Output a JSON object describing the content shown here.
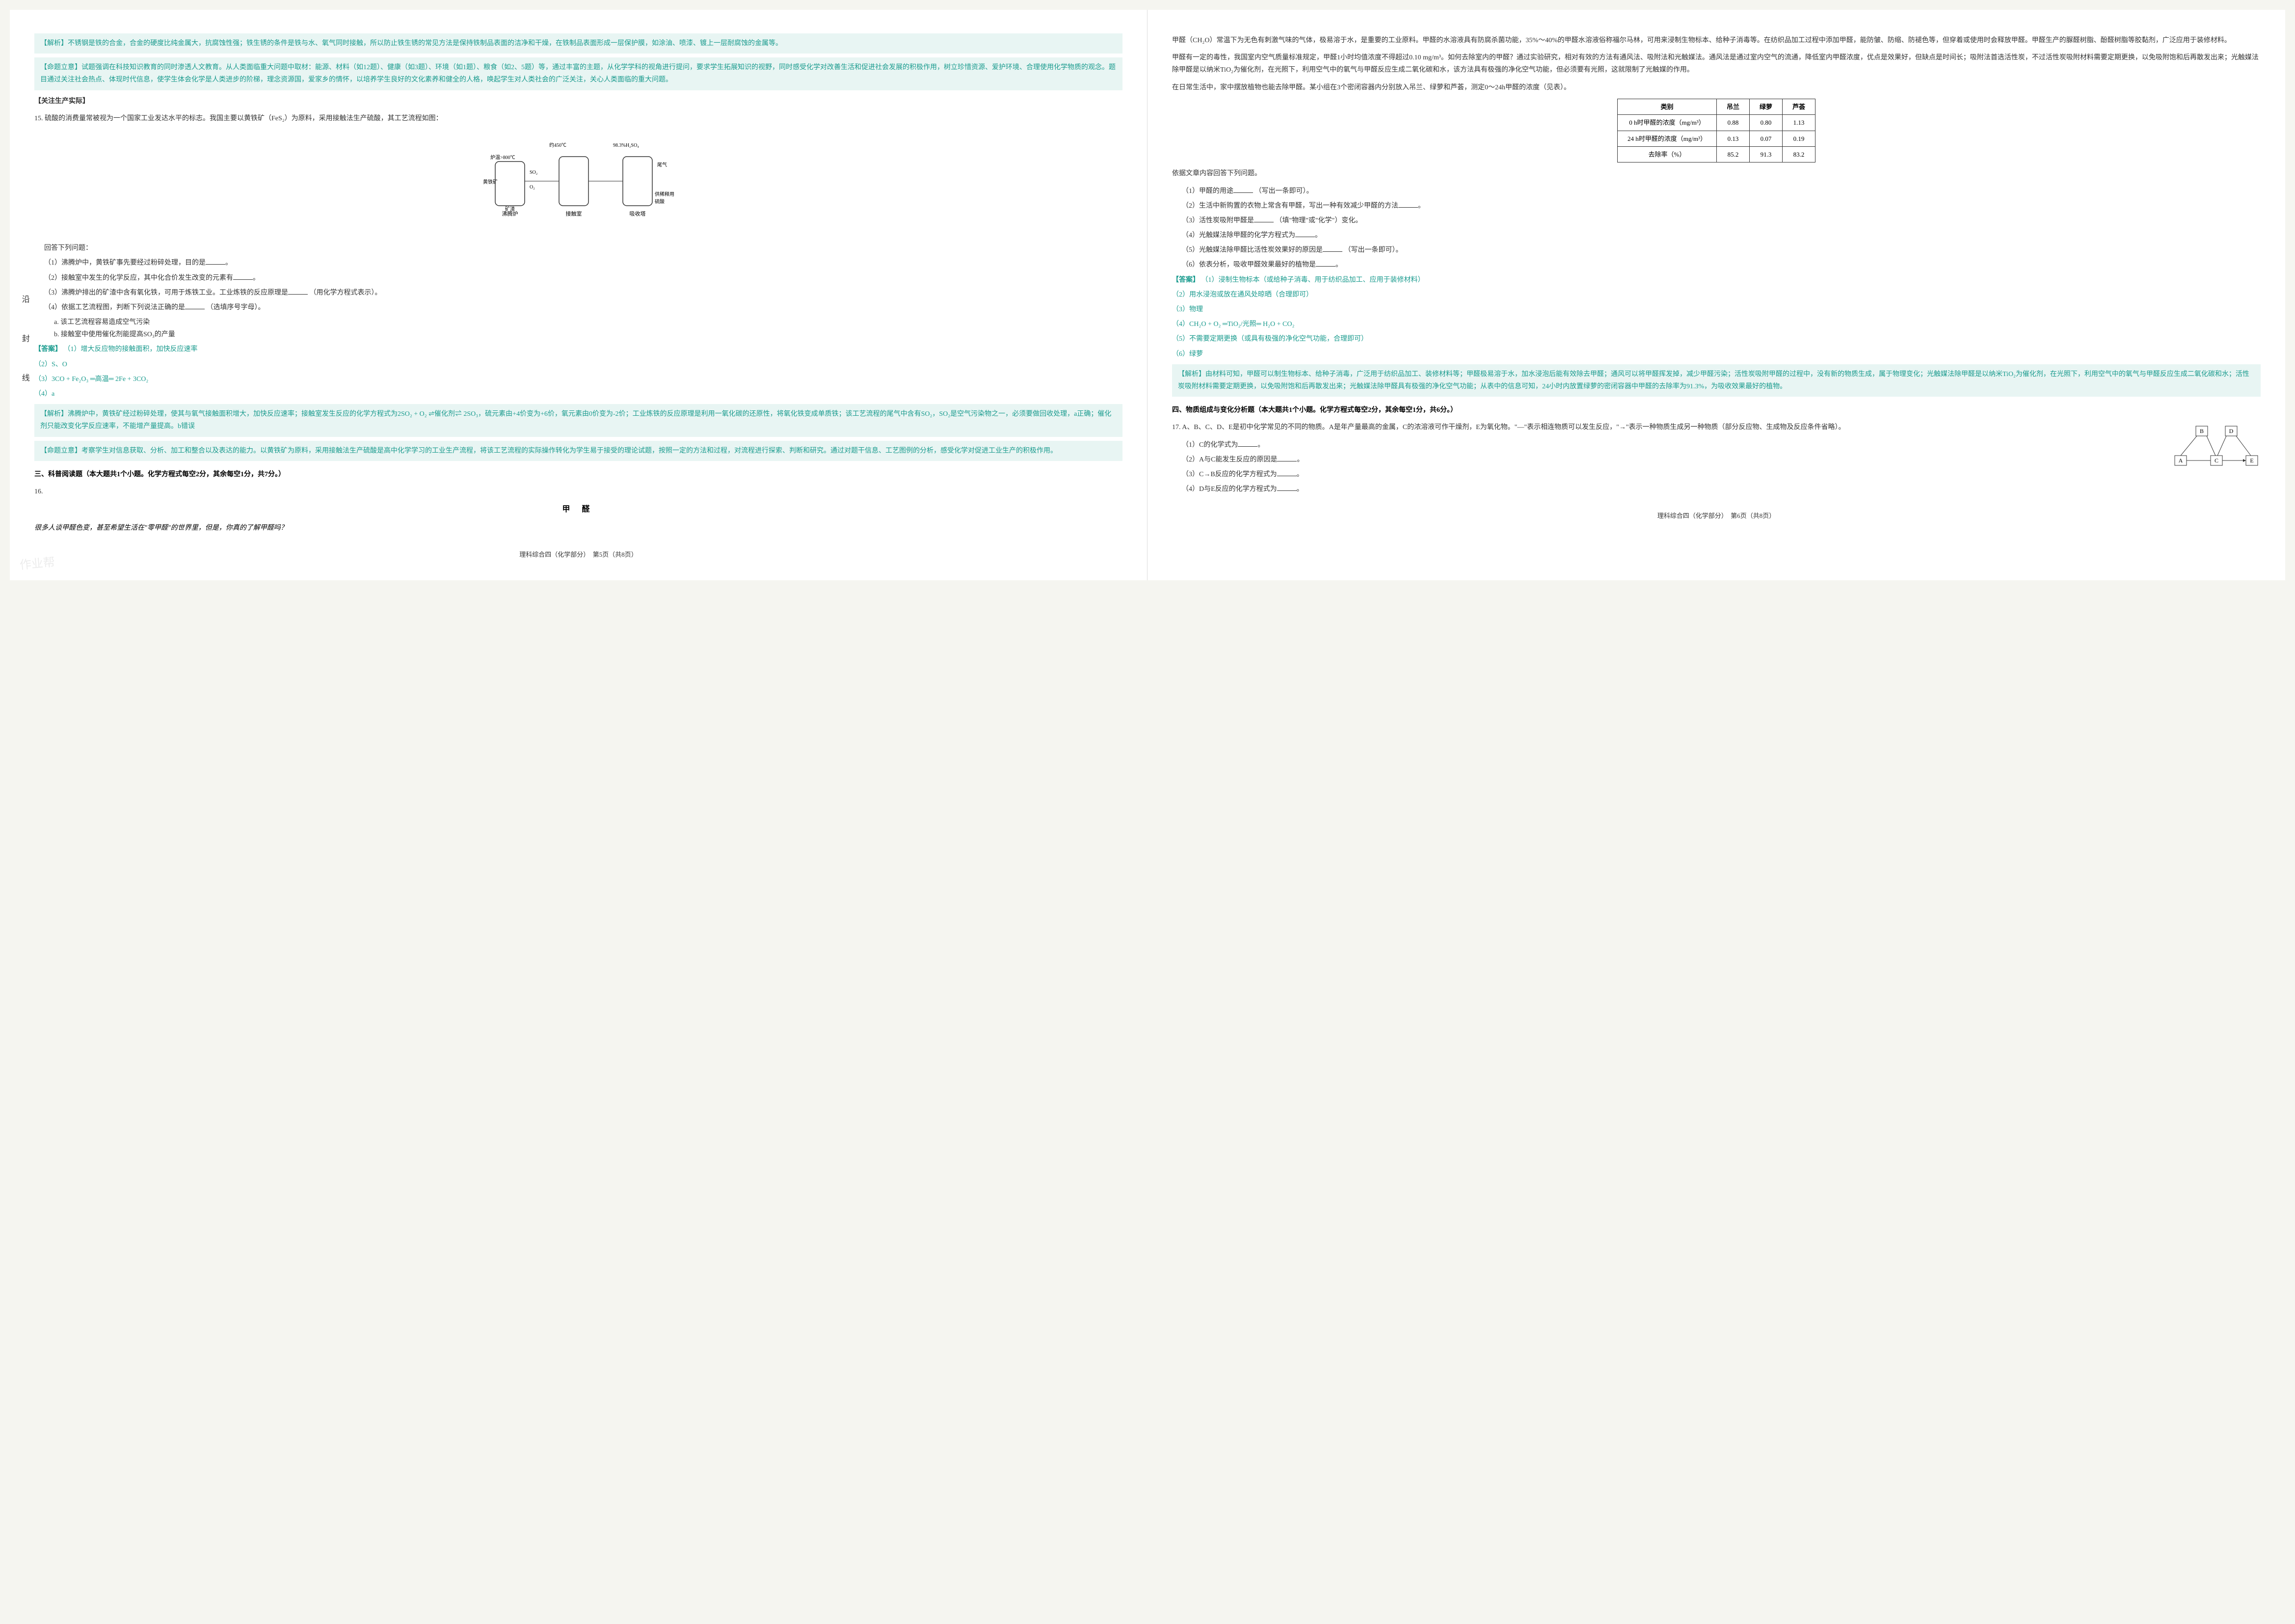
{
  "left_page": {
    "margin_text": "沿 封 线",
    "analysis_1": "【解析】不锈钢是铁的合金，合金的硬度比纯金属大，抗腐蚀性强；铁生锈的条件是铁与水、氧气同时接触，所以防止铁生锈的常见方法是保持铁制品表面的洁净和干燥，在铁制品表面形成一层保护膜，如涂油、喷漆、镀上一层耐腐蚀的金属等。",
    "intent_1": "【命题立意】试题强调在科技知识教育的同时渗透人文教育。从人类面临重大问题中取材：能源、材料（如12题）、健康（如3题）、环境（如1题）、粮食（如2、5题）等，通过丰富的主题，从化学学科的视角进行提问，要求学生拓展知识的视野，同时感受化学对改善生活和促进社会发展的积极作用，树立珍惜资源、爱护环境、合理使用化学物质的观念。题目通过关注社会热点、体现时代信息，使学生体会化学是人类进步的阶梯，理念资源国，爱家乡的情怀，以培养学生良好的文化素养和健全的人格，唤起学生对人类社会的广泛关注，关心人类面临的重大问题。",
    "focus_1": "【关注生产实际】",
    "q15_num": "15.",
    "q15_text": "硫酸的消费量常被视为一个国家工业发达水平的标志。我国主要以黄铁矿（FeS₂）为原料，采用接触法生产硫酸，其工艺流程如图：",
    "diagram_labels": {
      "temp1": "约450℃",
      "percent": "98.3%H₂SO₄",
      "temp2": "炉温>800℃",
      "items": [
        "黄铁矿",
        "矿渣",
        "空气",
        "催化剂",
        "精制SO₂",
        "O₂",
        "尾气",
        "热交换器",
        "供稀释用硫酸"
      ],
      "devices": [
        "沸腾炉",
        "接触室",
        "吸收塔"
      ]
    },
    "q15_intro": "回答下列问题：",
    "q15_1": "（1）沸腾炉中，黄铁矿事先要经过粉碎处理，目的是",
    "q15_2": "（2）接触室中发生的化学反应，其中化合价发生改变的元素有",
    "q15_3": "（3）沸腾炉排出的矿渣中含有氧化铁，可用于炼铁工业。工业炼铁的反应原理是",
    "q15_3_suffix": "（用化学方程式表示）。",
    "q15_4": "（4）依据工艺流程图，判断下列说法正确的是",
    "q15_4_suffix": "（选填序号字母）。",
    "q15_4a": "a. 该工艺流程容易造成空气污染",
    "q15_4b": "b. 接触室中使用催化剂能提高SO₃的产量",
    "ans15_label": "【答案】",
    "ans15_1": "（1）增大反应物的接触面积，加快反应速率",
    "ans15_2": "（2）S、O",
    "ans15_3": "（3）3CO + Fe₂O₃ ═高温═ 2Fe + 3CO₂",
    "ans15_4": "（4）a",
    "analysis_15": "【解析】沸腾炉中，黄铁矿经过粉碎处理，使其与氧气接触面积增大，加快反应速率；接触室发生反应的化学方程式为2SO₂ + O₂ ⇌催化剂⇌ 2SO₃，硫元素由+4价变为+6价，氧元素由0价变为-2价；工业炼铁的反应原理是利用一氧化碳的还原性，将氧化铁变成单质铁；该工艺流程的尾气中含有SO₂，SO₂是空气污染物之一，必须要做回收处理，a正确；催化剂只能改变化学反应速率，不能增产量提高。b错误",
    "intent_15": "【命题立意】考察学生对信息获取、分析、加工和整合以及表达的能力。以黄铁矿为原料，采用接触法生产硫酸是高中化学学习的工业生产流程，将该工艺流程的实际操作转化为学生易于接受的理论试题，按照一定的方法和过程，对流程进行探索、判断和研究。通过对题干信息、工艺图例的分析，感受化学对促进工业生产的积极作用。",
    "section3": "三、科普阅读题（本大题共1个小题。化学方程式每空2分，其余每空1分，共7分。）",
    "q16_num": "16.",
    "q16_title": "甲 醛",
    "q16_intro": "很多人谈甲醛色变，甚至希望生活在\"零甲醛\"的世界里，但是，你真的了解甲醛吗？",
    "footer": "理科综合四（化学部分）　第5页（共8页）",
    "watermark": "作业帮"
  },
  "right_page": {
    "para1": "甲醛（CH₂O）常温下为无色有刺激气味的气体，极易溶于水，是重要的工业原料。甲醛的水溶液具有防腐杀菌功能，35%～40%的甲醛水溶液俗称福尔马林，可用来浸制生物标本、给种子消毒等。在纺织品加工过程中添加甲醛，能防皱、防缩、防褪色等，但穿着或使用时会释放甲醛。甲醛生产的脲醛树脂、酚醛树脂等胶黏剂，广泛应用于装修材料。",
    "para2": "甲醛有一定的毒性，我国室内空气质量标准规定，甲醛1小时均值浓度不得超过0.10 mg/m³。如何去除室内的甲醛？通过实验研究，相对有效的方法有通风法、吸附法和光触媒法。通风法是通过室内空气的流通，降低室内甲醛浓度，优点是效果好，但缺点是时间长；吸附法首选活性炭，不过活性炭吸附材料需要定期更换，以免吸附饱和后再散发出来；光触媒法除甲醛是以纳米TiO₂为催化剂，在光照下，利用空气中的氧气与甲醛反应生成二氧化碳和水，该方法具有极强的净化空气功能，但必须要有光照，这就限制了光触媒的作用。",
    "para3": "在日常生活中，家中摆放植物也能去除甲醛。某小组在3个密闭容器内分别放入吊兰、绿萝和芦荟，测定0～24h甲醛的浓度（见表）。",
    "table": {
      "header": [
        "类别",
        "吊兰",
        "绿萝",
        "芦荟"
      ],
      "rows": [
        [
          "0 h时甲醛的浓度（mg/m³）",
          "0.88",
          "0.80",
          "1.13"
        ],
        [
          "24 h时甲醛的浓度（mg/m³）",
          "0.13",
          "0.07",
          "0.19"
        ],
        [
          "去除率（%）",
          "85.2",
          "91.3",
          "83.2"
        ]
      ]
    },
    "q_instruction": "依据文章内容回答下列问题。",
    "q16_1": "（1）甲醛的用途",
    "q16_1_suffix": "（写出一条即可）。",
    "q16_2": "（2）生活中新购置的衣物上常含有甲醛，写出一种有效减少甲醛的方法",
    "q16_3": "（3）活性炭吸附甲醛是",
    "q16_3_suffix": "（填\"物理\"或\"化学\"）变化。",
    "q16_4": "（4）光触媒法除甲醛的化学方程式为",
    "q16_5": "（5）光触媒法除甲醛比活性炭效果好的原因是",
    "q16_5_suffix": "（写出一条即可）。",
    "q16_6": "（6）依表分析，吸收甲醛效果最好的植物是",
    "ans16_label": "【答案】",
    "ans16_1": "（1）浸制生物标本（或给种子消毒、用于纺织品加工、应用于装修材料）",
    "ans16_2": "（2）用水浸泡或放在通风处晾晒（合理即可）",
    "ans16_3": "（3）物理",
    "ans16_4": "（4）CH₂O + O₂ ═TiO₂/光照═ H₂O + CO₂",
    "ans16_5": "（5）不需要定期更换（或具有极强的净化空气功能，合理即可）",
    "ans16_6": "（6）绿萝",
    "analysis_16": "【解析】由材料可知，甲醛可以制生物标本、给种子消毒，广泛用于纺织品加工、装修材料等；甲醛极易溶于水，加水浸泡后能有效除去甲醛；通风可以将甲醛挥发掉，减少甲醛污染；活性炭吸附甲醛的过程中，没有新的物质生成，属于物理变化；光触媒法除甲醛是以纳米TiO₂为催化剂，在光照下，利用空气中的氧气与甲醛反应生成二氧化碳和水；活性炭吸附材料需要定期更换，以免吸附饱和后再散发出来；光触媒法除甲醛具有极强的净化空气功能；从表中的信息可知，24小时内放置绿萝的密闭容器中甲醛的去除率为91.3%，为吸收效果最好的植物。",
    "section4": "四、物质组成与变化分析题（本大题共1个小题。化学方程式每空2分，其余每空1分，共6分。）",
    "q17_num": "17.",
    "q17_text": "A、B、C、D、E是初中化学常见的不同的物质。A是年产量最高的金属，C的浓溶液可作干燥剂，E为氧化物。\"—\"表示相连物质可以发生反应，\"→\"表示一种物质生成另一种物质（部分反应物、生成物及反应条件省略）。",
    "q17_1": "（1）C的化学式为",
    "q17_2": "（2）A与C能发生反应的原因是",
    "q17_3": "（3）C→B反应的化学方程式为",
    "q17_4": "（4）D与E反应的化学方程式为",
    "graph_nodes": [
      "A",
      "B",
      "C",
      "D",
      "E"
    ],
    "footer": "理科综合四（化学部分）　第6页（共8页）"
  },
  "colors": {
    "analysis_text": "#1a9b8e",
    "analysis_bg": "#e8f5f3",
    "body_text": "#333333",
    "page_bg": "#ffffff"
  }
}
